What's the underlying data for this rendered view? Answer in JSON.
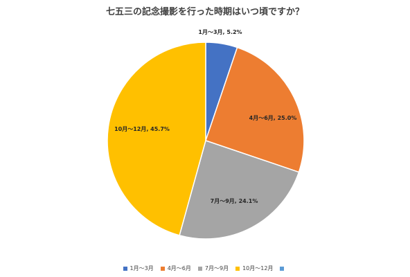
{
  "chart_data": {
    "type": "pie",
    "title": "七五三の記念撮影を行った時期はいつ頃ですか？",
    "slices": [
      {
        "label": "1月～3月",
        "value": 5.2,
        "display": "1月～3月, 5.2%",
        "color": "#4472C4"
      },
      {
        "label": "4月～6月",
        "value": 25.0,
        "display": "4月～6月, 25.0%",
        "color": "#ED7D31"
      },
      {
        "label": "7月～9月",
        "value": 24.1,
        "display": "7月～9月, 24.1%",
        "color": "#A5A5A5"
      },
      {
        "label": "10月～12月",
        "value": 45.7,
        "display": "10月～12月, 45.7%",
        "color": "#FFC000"
      }
    ],
    "legend": {
      "placement": "bottom",
      "entries": [
        {
          "label": "1月～3月",
          "color": "#4472C4"
        },
        {
          "label": "4月～6月",
          "color": "#ED7D31"
        },
        {
          "label": "7月～9月",
          "color": "#A5A5A5"
        },
        {
          "label": "10月～12月",
          "color": "#FFC000"
        },
        {
          "label": "",
          "color": "#5B9BD5"
        }
      ]
    }
  }
}
